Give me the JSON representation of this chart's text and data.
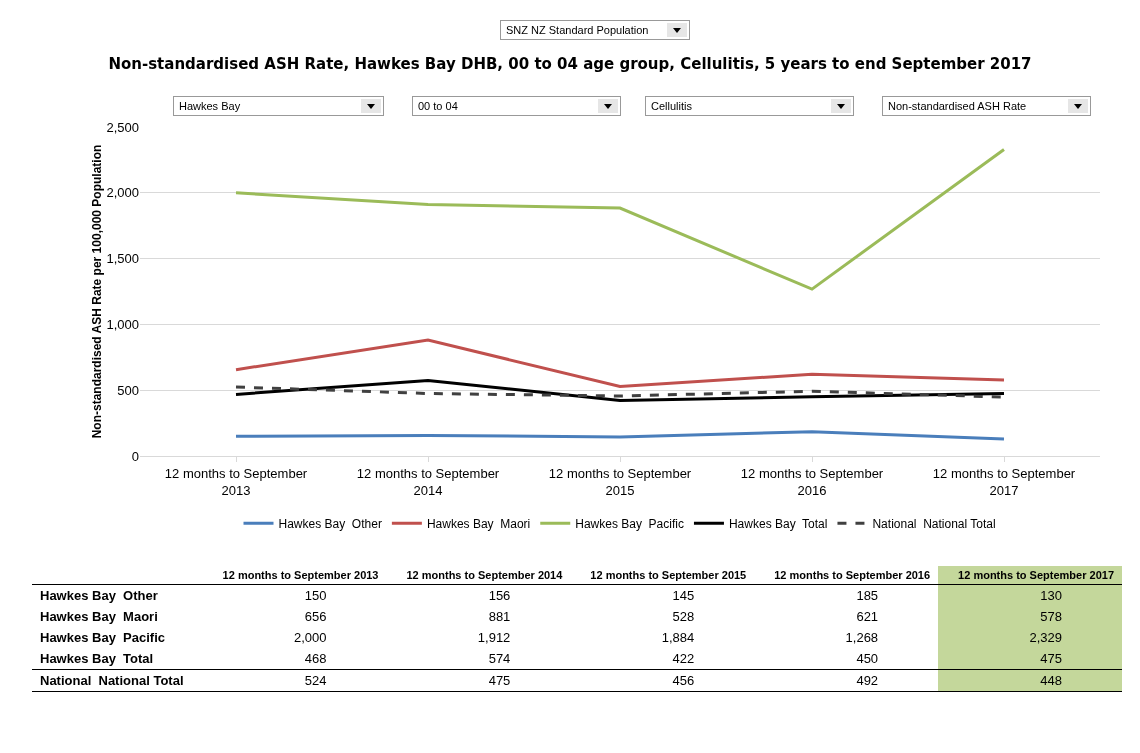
{
  "chart_data": {
    "type": "line",
    "title": "Non-standardised ASH Rate, Hawkes Bay DHB, 00 to 04 age group, Cellulitis, 5 years to end September 2017",
    "ylabel": "Non-standardised ASH Rate per 100,000 Population",
    "annotations": [
      "SNZ NZ Standard Population",
      "Hawkes Bay",
      "00 to 04",
      "Cellulitis",
      "Non-standardised ASH Rate"
    ],
    "categories": [
      "12 months to September 2013",
      "12 months to September 2014",
      "12 months to September 2015",
      "12 months to September 2016",
      "12 months to September 2017"
    ],
    "series": [
      {
        "name": "Hawkes Bay  Other",
        "color": "#4a7ebb",
        "values": [
          150,
          156,
          145,
          185,
          130
        ],
        "value_labels": [
          "150",
          "156",
          "145",
          "185",
          "130"
        ]
      },
      {
        "name": "Hawkes Bay  Maori",
        "color": "#c0504d",
        "values": [
          656,
          881,
          528,
          621,
          578
        ],
        "value_labels": [
          "656",
          "881",
          "528",
          "621",
          "578"
        ]
      },
      {
        "name": "Hawkes Bay  Pacific",
        "color": "#9bbb59",
        "values": [
          2000,
          1912,
          1884,
          1268,
          2329
        ],
        "value_labels": [
          "2,000",
          "1,912",
          "1,884",
          "1,268",
          "2,329"
        ]
      },
      {
        "name": "Hawkes Bay  Total",
        "color": "#000000",
        "values": [
          468,
          574,
          422,
          450,
          475
        ],
        "value_labels": [
          "468",
          "574",
          "422",
          "450",
          "475"
        ]
      },
      {
        "name": "National  National Total",
        "color": "#404040",
        "line_style": "dashed",
        "values": [
          524,
          475,
          456,
          492,
          448
        ],
        "value_labels": [
          "524",
          "475",
          "456",
          "492",
          "448"
        ]
      }
    ],
    "ylim": [
      0,
      2500
    ],
    "yticks": [
      0,
      {
        "value": 500,
        "label": "500"
      },
      {
        "value": 1000,
        "label": "1,000"
      },
      {
        "value": 1500,
        "label": "1,500"
      },
      {
        "value": 2000,
        "label": "2,000"
      },
      {
        "value": 2500,
        "label": "2,500"
      }
    ],
    "grid": "y",
    "legend": "bottom",
    "marker": "none",
    "line_style": "solid"
  }
}
